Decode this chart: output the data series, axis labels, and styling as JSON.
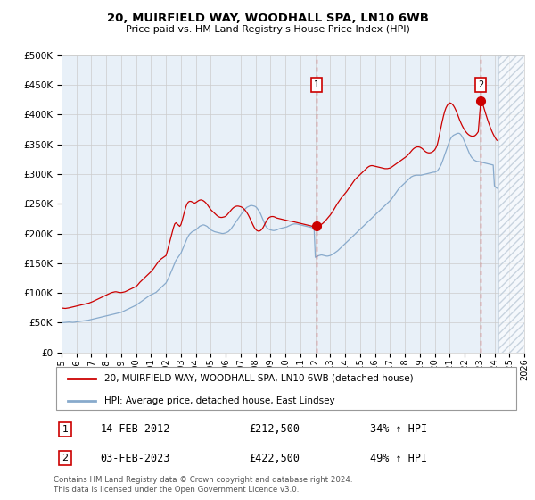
{
  "title1": "20, MUIRFIELD WAY, WOODHALL SPA, LN10 6WB",
  "title2": "Price paid vs. HM Land Registry's House Price Index (HPI)",
  "plot_bg": "#e8f0f8",
  "red_color": "#cc0000",
  "blue_color": "#88aacc",
  "hpi_dates": [
    1995.0,
    1995.083,
    1995.167,
    1995.25,
    1995.333,
    1995.417,
    1995.5,
    1995.583,
    1995.667,
    1995.75,
    1995.833,
    1995.917,
    1996.0,
    1996.083,
    1996.167,
    1996.25,
    1996.333,
    1996.417,
    1996.5,
    1996.583,
    1996.667,
    1996.75,
    1996.833,
    1996.917,
    1997.0,
    1997.083,
    1997.167,
    1997.25,
    1997.333,
    1997.417,
    1997.5,
    1997.583,
    1997.667,
    1997.75,
    1997.833,
    1997.917,
    1998.0,
    1998.083,
    1998.167,
    1998.25,
    1998.333,
    1998.417,
    1998.5,
    1998.583,
    1998.667,
    1998.75,
    1998.833,
    1998.917,
    1999.0,
    1999.083,
    1999.167,
    1999.25,
    1999.333,
    1999.417,
    1999.5,
    1999.583,
    1999.667,
    1999.75,
    1999.833,
    1999.917,
    2000.0,
    2000.083,
    2000.167,
    2000.25,
    2000.333,
    2000.417,
    2000.5,
    2000.583,
    2000.667,
    2000.75,
    2000.833,
    2000.917,
    2001.0,
    2001.083,
    2001.167,
    2001.25,
    2001.333,
    2001.417,
    2001.5,
    2001.583,
    2001.667,
    2001.75,
    2001.833,
    2001.917,
    2002.0,
    2002.083,
    2002.167,
    2002.25,
    2002.333,
    2002.417,
    2002.5,
    2002.583,
    2002.667,
    2002.75,
    2002.833,
    2002.917,
    2003.0,
    2003.083,
    2003.167,
    2003.25,
    2003.333,
    2003.417,
    2003.5,
    2003.583,
    2003.667,
    2003.75,
    2003.833,
    2003.917,
    2004.0,
    2004.083,
    2004.167,
    2004.25,
    2004.333,
    2004.417,
    2004.5,
    2004.583,
    2004.667,
    2004.75,
    2004.833,
    2004.917,
    2005.0,
    2005.083,
    2005.167,
    2005.25,
    2005.333,
    2005.417,
    2005.5,
    2005.583,
    2005.667,
    2005.75,
    2005.833,
    2005.917,
    2006.0,
    2006.083,
    2006.167,
    2006.25,
    2006.333,
    2006.417,
    2006.5,
    2006.583,
    2006.667,
    2006.75,
    2006.833,
    2006.917,
    2007.0,
    2007.083,
    2007.167,
    2007.25,
    2007.333,
    2007.417,
    2007.5,
    2007.583,
    2007.667,
    2007.75,
    2007.833,
    2007.917,
    2008.0,
    2008.083,
    2008.167,
    2008.25,
    2008.333,
    2008.417,
    2008.5,
    2008.583,
    2008.667,
    2008.75,
    2008.833,
    2008.917,
    2009.0,
    2009.083,
    2009.167,
    2009.25,
    2009.333,
    2009.417,
    2009.5,
    2009.583,
    2009.667,
    2009.75,
    2009.833,
    2009.917,
    2010.0,
    2010.083,
    2010.167,
    2010.25,
    2010.333,
    2010.417,
    2010.5,
    2010.583,
    2010.667,
    2010.75,
    2010.833,
    2010.917,
    2011.0,
    2011.083,
    2011.167,
    2011.25,
    2011.333,
    2011.417,
    2011.5,
    2011.583,
    2011.667,
    2011.75,
    2011.833,
    2011.917,
    2012.0,
    2012.083,
    2012.167,
    2012.25,
    2012.333,
    2012.417,
    2012.5,
    2012.583,
    2012.667,
    2012.75,
    2012.833,
    2012.917,
    2013.0,
    2013.083,
    2013.167,
    2013.25,
    2013.333,
    2013.417,
    2013.5,
    2013.583,
    2013.667,
    2013.75,
    2013.833,
    2013.917,
    2014.0,
    2014.083,
    2014.167,
    2014.25,
    2014.333,
    2014.417,
    2014.5,
    2014.583,
    2014.667,
    2014.75,
    2014.833,
    2014.917,
    2015.0,
    2015.083,
    2015.167,
    2015.25,
    2015.333,
    2015.417,
    2015.5,
    2015.583,
    2015.667,
    2015.75,
    2015.833,
    2015.917,
    2016.0,
    2016.083,
    2016.167,
    2016.25,
    2016.333,
    2016.417,
    2016.5,
    2016.583,
    2016.667,
    2016.75,
    2016.833,
    2016.917,
    2017.0,
    2017.083,
    2017.167,
    2017.25,
    2017.333,
    2017.417,
    2017.5,
    2017.583,
    2017.667,
    2017.75,
    2017.833,
    2017.917,
    2018.0,
    2018.083,
    2018.167,
    2018.25,
    2018.333,
    2018.417,
    2018.5,
    2018.583,
    2018.667,
    2018.75,
    2018.833,
    2018.917,
    2019.0,
    2019.083,
    2019.167,
    2019.25,
    2019.333,
    2019.417,
    2019.5,
    2019.583,
    2019.667,
    2019.75,
    2019.833,
    2019.917,
    2020.0,
    2020.083,
    2020.167,
    2020.25,
    2020.333,
    2020.417,
    2020.5,
    2020.583,
    2020.667,
    2020.75,
    2020.833,
    2020.917,
    2021.0,
    2021.083,
    2021.167,
    2021.25,
    2021.333,
    2021.417,
    2021.5,
    2021.583,
    2021.667,
    2021.75,
    2021.833,
    2021.917,
    2022.0,
    2022.083,
    2022.167,
    2022.25,
    2022.333,
    2022.417,
    2022.5,
    2022.583,
    2022.667,
    2022.75,
    2022.833,
    2022.917,
    2023.0,
    2023.083,
    2023.167,
    2023.25,
    2023.333,
    2023.417,
    2023.5,
    2023.583,
    2023.667,
    2023.75,
    2023.833,
    2023.917,
    2024.0,
    2024.083,
    2024.167
  ],
  "hpi_values": [
    50000,
    50200,
    50400,
    50600,
    50800,
    51000,
    51200,
    51000,
    50800,
    50600,
    50800,
    51000,
    51500,
    51800,
    52000,
    52300,
    52600,
    52900,
    53200,
    53500,
    53800,
    54000,
    54500,
    55000,
    55500,
    56000,
    56500,
    57000,
    57500,
    58000,
    58500,
    59000,
    59500,
    60000,
    60500,
    61000,
    61500,
    62000,
    62500,
    63000,
    63500,
    64000,
    64500,
    65000,
    65500,
    66000,
    66500,
    67000,
    67500,
    68500,
    69500,
    70500,
    71500,
    72500,
    73500,
    74500,
    75500,
    76500,
    77500,
    78500,
    79500,
    81000,
    82500,
    84000,
    85500,
    87000,
    88500,
    90000,
    91500,
    93000,
    94500,
    96000,
    97000,
    98000,
    99000,
    100000,
    101000,
    103000,
    105000,
    107000,
    109000,
    111000,
    113000,
    115000,
    117000,
    121000,
    125000,
    130000,
    135000,
    140000,
    145000,
    150000,
    155000,
    158000,
    161000,
    164000,
    167000,
    172000,
    177000,
    182000,
    187000,
    192000,
    196000,
    199000,
    201000,
    203000,
    204000,
    205000,
    206000,
    208000,
    210000,
    212000,
    213000,
    214000,
    214500,
    214000,
    213000,
    212000,
    210000,
    208000,
    206000,
    205000,
    204000,
    203000,
    202500,
    202000,
    201500,
    201000,
    200500,
    200000,
    200000,
    200500,
    201000,
    202000,
    203000,
    205000,
    207000,
    210000,
    213000,
    216000,
    219000,
    222000,
    225000,
    228000,
    231000,
    234000,
    237000,
    240000,
    242000,
    244000,
    245000,
    246000,
    247000,
    247000,
    246500,
    246000,
    245000,
    243000,
    240000,
    237000,
    233000,
    228000,
    223000,
    218000,
    213000,
    210000,
    208000,
    207000,
    206000,
    205500,
    205000,
    205000,
    205500,
    206000,
    207000,
    208000,
    208500,
    209000,
    209500,
    210000,
    210500,
    211000,
    212000,
    213000,
    214000,
    215000,
    215500,
    216000,
    216000,
    216000,
    215500,
    215000,
    214500,
    214000,
    213500,
    213000,
    212500,
    212000,
    211500,
    211000,
    210500,
    210000,
    210000,
    210000,
    160000,
    161000,
    162000,
    163000,
    163500,
    164000,
    163500,
    163000,
    162500,
    162000,
    162000,
    162500,
    163000,
    164000,
    165000,
    166500,
    168000,
    169500,
    171000,
    173000,
    175000,
    177000,
    179000,
    181000,
    183000,
    185000,
    187000,
    189000,
    191000,
    193000,
    195000,
    197000,
    199000,
    201000,
    203000,
    205000,
    207000,
    209000,
    211000,
    213000,
    215000,
    217000,
    219000,
    221000,
    223000,
    225000,
    227000,
    229000,
    231000,
    233000,
    235000,
    237000,
    239000,
    241000,
    243000,
    245000,
    247000,
    249000,
    251000,
    253000,
    255000,
    257000,
    260000,
    263000,
    266000,
    269000,
    272000,
    275000,
    277000,
    279000,
    281000,
    283000,
    285000,
    287000,
    289000,
    291000,
    293000,
    295000,
    296000,
    297000,
    297500,
    298000,
    298000,
    298000,
    298000,
    298000,
    298500,
    299000,
    299500,
    300000,
    300500,
    301000,
    301500,
    302000,
    302500,
    303000,
    303000,
    304000,
    305000,
    308000,
    311000,
    315000,
    320000,
    326000,
    332000,
    338000,
    344000,
    350000,
    356000,
    360000,
    363000,
    365000,
    366000,
    367000,
    368000,
    368500,
    368000,
    366000,
    363000,
    359000,
    354000,
    349000,
    344000,
    339000,
    334000,
    330000,
    327000,
    325000,
    323000,
    322000,
    321000,
    321000,
    320500,
    320000,
    319500,
    319000,
    318500,
    318000,
    317500,
    317000,
    316500,
    316000,
    315500,
    315000,
    280000,
    278000,
    276000
  ],
  "red_dates": [
    1995.0,
    1995.083,
    1995.167,
    1995.25,
    1995.333,
    1995.417,
    1995.5,
    1995.583,
    1995.667,
    1995.75,
    1995.833,
    1995.917,
    1996.0,
    1996.083,
    1996.167,
    1996.25,
    1996.333,
    1996.417,
    1996.5,
    1996.583,
    1996.667,
    1996.75,
    1996.833,
    1996.917,
    1997.0,
    1997.083,
    1997.167,
    1997.25,
    1997.333,
    1997.417,
    1997.5,
    1997.583,
    1997.667,
    1997.75,
    1997.833,
    1997.917,
    1998.0,
    1998.083,
    1998.167,
    1998.25,
    1998.333,
    1998.417,
    1998.5,
    1998.583,
    1998.667,
    1998.75,
    1998.833,
    1998.917,
    1999.0,
    1999.083,
    1999.167,
    1999.25,
    1999.333,
    1999.417,
    1999.5,
    1999.583,
    1999.667,
    1999.75,
    1999.833,
    1999.917,
    2000.0,
    2000.083,
    2000.167,
    2000.25,
    2000.333,
    2000.417,
    2000.5,
    2000.583,
    2000.667,
    2000.75,
    2000.833,
    2000.917,
    2001.0,
    2001.083,
    2001.167,
    2001.25,
    2001.333,
    2001.417,
    2001.5,
    2001.583,
    2001.667,
    2001.75,
    2001.833,
    2001.917,
    2002.0,
    2002.083,
    2002.167,
    2002.25,
    2002.333,
    2002.417,
    2002.5,
    2002.583,
    2002.667,
    2002.75,
    2002.833,
    2002.917,
    2003.0,
    2003.083,
    2003.167,
    2003.25,
    2003.333,
    2003.417,
    2003.5,
    2003.583,
    2003.667,
    2003.75,
    2003.833,
    2003.917,
    2004.0,
    2004.083,
    2004.167,
    2004.25,
    2004.333,
    2004.417,
    2004.5,
    2004.583,
    2004.667,
    2004.75,
    2004.833,
    2004.917,
    2005.0,
    2005.083,
    2005.167,
    2005.25,
    2005.333,
    2005.417,
    2005.5,
    2005.583,
    2005.667,
    2005.75,
    2005.833,
    2005.917,
    2006.0,
    2006.083,
    2006.167,
    2006.25,
    2006.333,
    2006.417,
    2006.5,
    2006.583,
    2006.667,
    2006.75,
    2006.833,
    2006.917,
    2007.0,
    2007.083,
    2007.167,
    2007.25,
    2007.333,
    2007.417,
    2007.5,
    2007.583,
    2007.667,
    2007.75,
    2007.833,
    2007.917,
    2008.0,
    2008.083,
    2008.167,
    2008.25,
    2008.333,
    2008.417,
    2008.5,
    2008.583,
    2008.667,
    2008.75,
    2008.833,
    2008.917,
    2009.0,
    2009.083,
    2009.167,
    2009.25,
    2009.333,
    2009.417,
    2009.5,
    2009.583,
    2009.667,
    2009.75,
    2009.833,
    2009.917,
    2010.0,
    2010.083,
    2010.167,
    2010.25,
    2010.333,
    2010.417,
    2010.5,
    2010.583,
    2010.667,
    2010.75,
    2010.833,
    2010.917,
    2011.0,
    2011.083,
    2011.167,
    2011.25,
    2011.333,
    2011.417,
    2011.5,
    2011.583,
    2011.667,
    2011.75,
    2011.833,
    2011.917,
    2012.083,
    2012.25,
    2012.333,
    2012.417,
    2012.5,
    2012.583,
    2012.667,
    2012.75,
    2012.833,
    2012.917,
    2013.0,
    2013.083,
    2013.167,
    2013.25,
    2013.333,
    2013.417,
    2013.5,
    2013.583,
    2013.667,
    2013.75,
    2013.833,
    2013.917,
    2014.0,
    2014.083,
    2014.167,
    2014.25,
    2014.333,
    2014.417,
    2014.5,
    2014.583,
    2014.667,
    2014.75,
    2014.833,
    2014.917,
    2015.0,
    2015.083,
    2015.167,
    2015.25,
    2015.333,
    2015.417,
    2015.5,
    2015.583,
    2015.667,
    2015.75,
    2015.833,
    2015.917,
    2016.0,
    2016.083,
    2016.167,
    2016.25,
    2016.333,
    2016.417,
    2016.5,
    2016.583,
    2016.667,
    2016.75,
    2016.833,
    2016.917,
    2017.0,
    2017.083,
    2017.167,
    2017.25,
    2017.333,
    2017.417,
    2017.5,
    2017.583,
    2017.667,
    2017.75,
    2017.833,
    2017.917,
    2018.0,
    2018.083,
    2018.167,
    2018.25,
    2018.333,
    2018.417,
    2018.5,
    2018.583,
    2018.667,
    2018.75,
    2018.833,
    2018.917,
    2019.0,
    2019.083,
    2019.167,
    2019.25,
    2019.333,
    2019.417,
    2019.5,
    2019.583,
    2019.667,
    2019.75,
    2019.833,
    2019.917,
    2020.0,
    2020.083,
    2020.167,
    2020.25,
    2020.333,
    2020.417,
    2020.5,
    2020.583,
    2020.667,
    2020.75,
    2020.833,
    2020.917,
    2021.0,
    2021.083,
    2021.167,
    2021.25,
    2021.333,
    2021.417,
    2021.5,
    2021.583,
    2021.667,
    2021.75,
    2021.833,
    2021.917,
    2022.0,
    2022.083,
    2022.167,
    2022.25,
    2022.333,
    2022.417,
    2022.5,
    2022.583,
    2022.667,
    2022.75,
    2022.833,
    2022.917,
    2023.083,
    2023.25,
    2023.333,
    2023.417,
    2023.5,
    2023.583,
    2023.667,
    2023.75,
    2023.833,
    2023.917,
    2024.0,
    2024.083,
    2024.167
  ],
  "red_values": [
    75000,
    74500,
    74200,
    74000,
    74300,
    74600,
    75000,
    75500,
    76000,
    76500,
    77000,
    77500,
    78000,
    78500,
    79000,
    79500,
    80000,
    80500,
    81000,
    81500,
    82000,
    82500,
    83000,
    83800,
    84500,
    85500,
    86500,
    87500,
    88500,
    89500,
    90500,
    91500,
    92500,
    93500,
    94500,
    95500,
    96500,
    97500,
    98500,
    99500,
    100500,
    101000,
    101500,
    102000,
    102000,
    101500,
    101000,
    100800,
    100600,
    101000,
    101500,
    102000,
    103000,
    104000,
    105000,
    106000,
    107000,
    108000,
    109000,
    110000,
    111000,
    113000,
    115500,
    118000,
    120000,
    122000,
    124000,
    126000,
    128000,
    130000,
    132000,
    134000,
    136000,
    138500,
    141000,
    144000,
    147000,
    150000,
    153000,
    155000,
    157000,
    158500,
    160000,
    161500,
    163000,
    170000,
    178000,
    186000,
    194000,
    202000,
    210000,
    216000,
    218000,
    216000,
    214000,
    212000,
    215000,
    222000,
    230000,
    238000,
    245000,
    250000,
    253000,
    254000,
    254000,
    253000,
    252000,
    251000,
    252000,
    253500,
    255000,
    256000,
    256500,
    256000,
    255000,
    253500,
    251500,
    249000,
    246000,
    243000,
    240000,
    238000,
    236000,
    234000,
    232000,
    230000,
    228500,
    227500,
    227000,
    227000,
    227500,
    228000,
    229000,
    231000,
    233500,
    236000,
    238500,
    241000,
    243000,
    244500,
    245500,
    246000,
    246000,
    245500,
    245000,
    244000,
    242500,
    240500,
    238000,
    235000,
    231500,
    227500,
    223000,
    218500,
    214000,
    210000,
    207000,
    205000,
    204000,
    204000,
    205000,
    207000,
    210000,
    214000,
    218000,
    222000,
    225000,
    227000,
    228000,
    228500,
    228500,
    228000,
    227000,
    226000,
    225500,
    225000,
    224500,
    224000,
    223500,
    223000,
    222500,
    222000,
    221500,
    221000,
    220800,
    220500,
    220000,
    219500,
    219000,
    218500,
    218000,
    217500,
    217000,
    216500,
    216000,
    215500,
    215000,
    214500,
    214000,
    213500,
    213000,
    212500,
    212000,
    211500,
    212500,
    213000,
    214000,
    215500,
    217000,
    219000,
    221000,
    223500,
    226000,
    228500,
    231000,
    234000,
    237000,
    240500,
    244000,
    247500,
    251000,
    254000,
    257000,
    260000,
    262500,
    265000,
    267500,
    270000,
    273000,
    276000,
    279000,
    282000,
    285000,
    288000,
    291000,
    293000,
    295000,
    297000,
    299000,
    301000,
    303000,
    305000,
    307000,
    309000,
    311000,
    312500,
    313500,
    314000,
    314000,
    313500,
    313000,
    312500,
    312000,
    311500,
    311000,
    310500,
    310000,
    309500,
    309000,
    309000,
    309000,
    309500,
    310000,
    311000,
    312500,
    314000,
    315500,
    317000,
    318500,
    320000,
    321500,
    323000,
    324500,
    326000,
    327500,
    329000,
    331000,
    333000,
    335500,
    338000,
    340500,
    342500,
    344000,
    345000,
    345500,
    345500,
    345000,
    344000,
    342500,
    340500,
    338500,
    337000,
    336000,
    335500,
    335500,
    336000,
    337000,
    338500,
    340500,
    344000,
    349000,
    358000,
    368000,
    378000,
    388000,
    397000,
    405000,
    411000,
    415000,
    418000,
    419500,
    419000,
    417500,
    415000,
    411500,
    407000,
    402000,
    396500,
    391000,
    386000,
    381500,
    377500,
    374000,
    371000,
    368500,
    366500,
    365000,
    364000,
    363500,
    363500,
    364000,
    365500,
    368000,
    371000,
    422500,
    415000,
    408000,
    401000,
    394500,
    388000,
    382000,
    376500,
    371500,
    367000,
    363000,
    359500,
    356500
  ],
  "purchase1_date": 2012.083,
  "purchase1_price": 212500,
  "purchase2_date": 2023.083,
  "purchase2_price": 422500,
  "xlim": [
    1995,
    2026
  ],
  "ylim": [
    0,
    500000
  ],
  "future_start": 2024.25,
  "xticks": [
    1995,
    1996,
    1997,
    1998,
    1999,
    2000,
    2001,
    2002,
    2003,
    2004,
    2005,
    2006,
    2007,
    2008,
    2009,
    2010,
    2011,
    2012,
    2013,
    2014,
    2015,
    2016,
    2017,
    2018,
    2019,
    2020,
    2021,
    2022,
    2023,
    2024,
    2025,
    2026
  ],
  "yticks": [
    0,
    50000,
    100000,
    150000,
    200000,
    250000,
    300000,
    350000,
    400000,
    450000,
    500000
  ],
  "legend1": "20, MUIRFIELD WAY, WOODHALL SPA, LN10 6WB (detached house)",
  "legend2": "HPI: Average price, detached house, East Lindsey",
  "ann1_label": "1",
  "ann1_date_str": "14-FEB-2012",
  "ann1_price_str": "£212,500",
  "ann1_hpi_str": "34% ↑ HPI",
  "ann2_label": "2",
  "ann2_date_str": "03-FEB-2023",
  "ann2_price_str": "£422,500",
  "ann2_hpi_str": "49% ↑ HPI",
  "footer": "Contains HM Land Registry data © Crown copyright and database right 2024.\nThis data is licensed under the Open Government Licence v3.0."
}
